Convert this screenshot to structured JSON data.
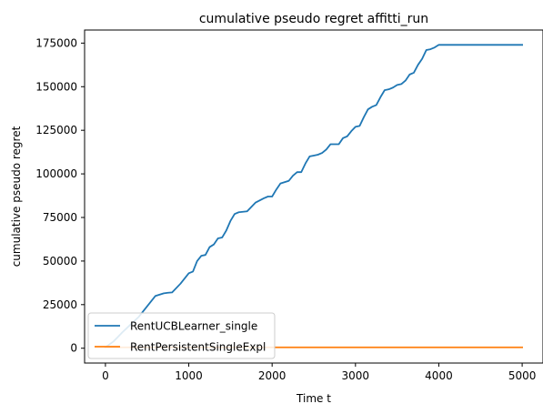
{
  "chart_data": {
    "type": "line",
    "title": "cumulative pseudo regret affitti_run",
    "xlabel": "Time t",
    "ylabel": "cumulative pseudo regret",
    "xlim": [
      -250,
      5250
    ],
    "ylim": [
      -8500,
      182500
    ],
    "xticks": [
      0,
      1000,
      2000,
      3000,
      4000,
      5000
    ],
    "xtick_labels": [
      "0",
      "1000",
      "2000",
      "3000",
      "4000",
      "5000"
    ],
    "yticks": [
      0,
      25000,
      50000,
      75000,
      100000,
      125000,
      150000,
      175000
    ],
    "ytick_labels": [
      "0",
      "25000",
      "50000",
      "75000",
      "100000",
      "125000",
      "150000",
      "175000"
    ],
    "grid": false,
    "legend": "lower-left",
    "series": [
      {
        "name": "RentUCBLearner_single",
        "color": "#1f77b4",
        "x": [
          0,
          100,
          200,
          300,
          400,
          500,
          600,
          700,
          750,
          800,
          900,
          1000,
          1050,
          1100,
          1150,
          1200,
          1250,
          1300,
          1350,
          1400,
          1450,
          1500,
          1550,
          1600,
          1700,
          1750,
          1800,
          1900,
          1950,
          2000,
          2050,
          2100,
          2200,
          2250,
          2300,
          2350,
          2400,
          2450,
          2500,
          2550,
          2600,
          2650,
          2700,
          2800,
          2850,
          2900,
          2950,
          3000,
          3050,
          3100,
          3150,
          3200,
          3250,
          3300,
          3350,
          3400,
          3450,
          3500,
          3550,
          3600,
          3650,
          3700,
          3750,
          3800,
          3850,
          3900,
          3950,
          4000,
          4050,
          4100,
          4150,
          4200,
          4250,
          4300,
          4350,
          4400,
          4450,
          4500,
          4550,
          4600,
          4650,
          4700,
          4750,
          4800,
          4850,
          4900,
          4950,
          5000
        ],
        "values": [
          500,
          4000,
          9000,
          13500,
          18000,
          24000,
          30000,
          31500,
          31800,
          32000,
          37000,
          43000,
          44000,
          50000,
          53000,
          53500,
          58000,
          59500,
          63000,
          63500,
          67500,
          73000,
          77000,
          78000,
          78500,
          81000,
          83500,
          86000,
          87000,
          87000,
          91000,
          94500,
          96000,
          99000,
          101000,
          101000,
          106000,
          110000,
          110500,
          111000,
          112000,
          114000,
          117000,
          117000,
          120500,
          121500,
          124500,
          127000,
          127500,
          132500,
          137000,
          138500,
          139500,
          144000,
          148000,
          148500,
          149500,
          151000,
          151500,
          153500,
          157000,
          158000,
          162500,
          166000,
          171000,
          171500,
          172500,
          174000,
          174000,
          174000,
          174000,
          174000,
          174000,
          174000,
          174000,
          174000,
          174000,
          174000,
          174000,
          174000,
          174000,
          174000,
          174000,
          174000,
          174000,
          174000,
          174000,
          174000
        ]
      },
      {
        "name": "RentPersistentSingleExpl",
        "color": "#ff7f0e",
        "x": [
          0,
          5000
        ],
        "values": [
          500,
          500
        ]
      }
    ]
  }
}
